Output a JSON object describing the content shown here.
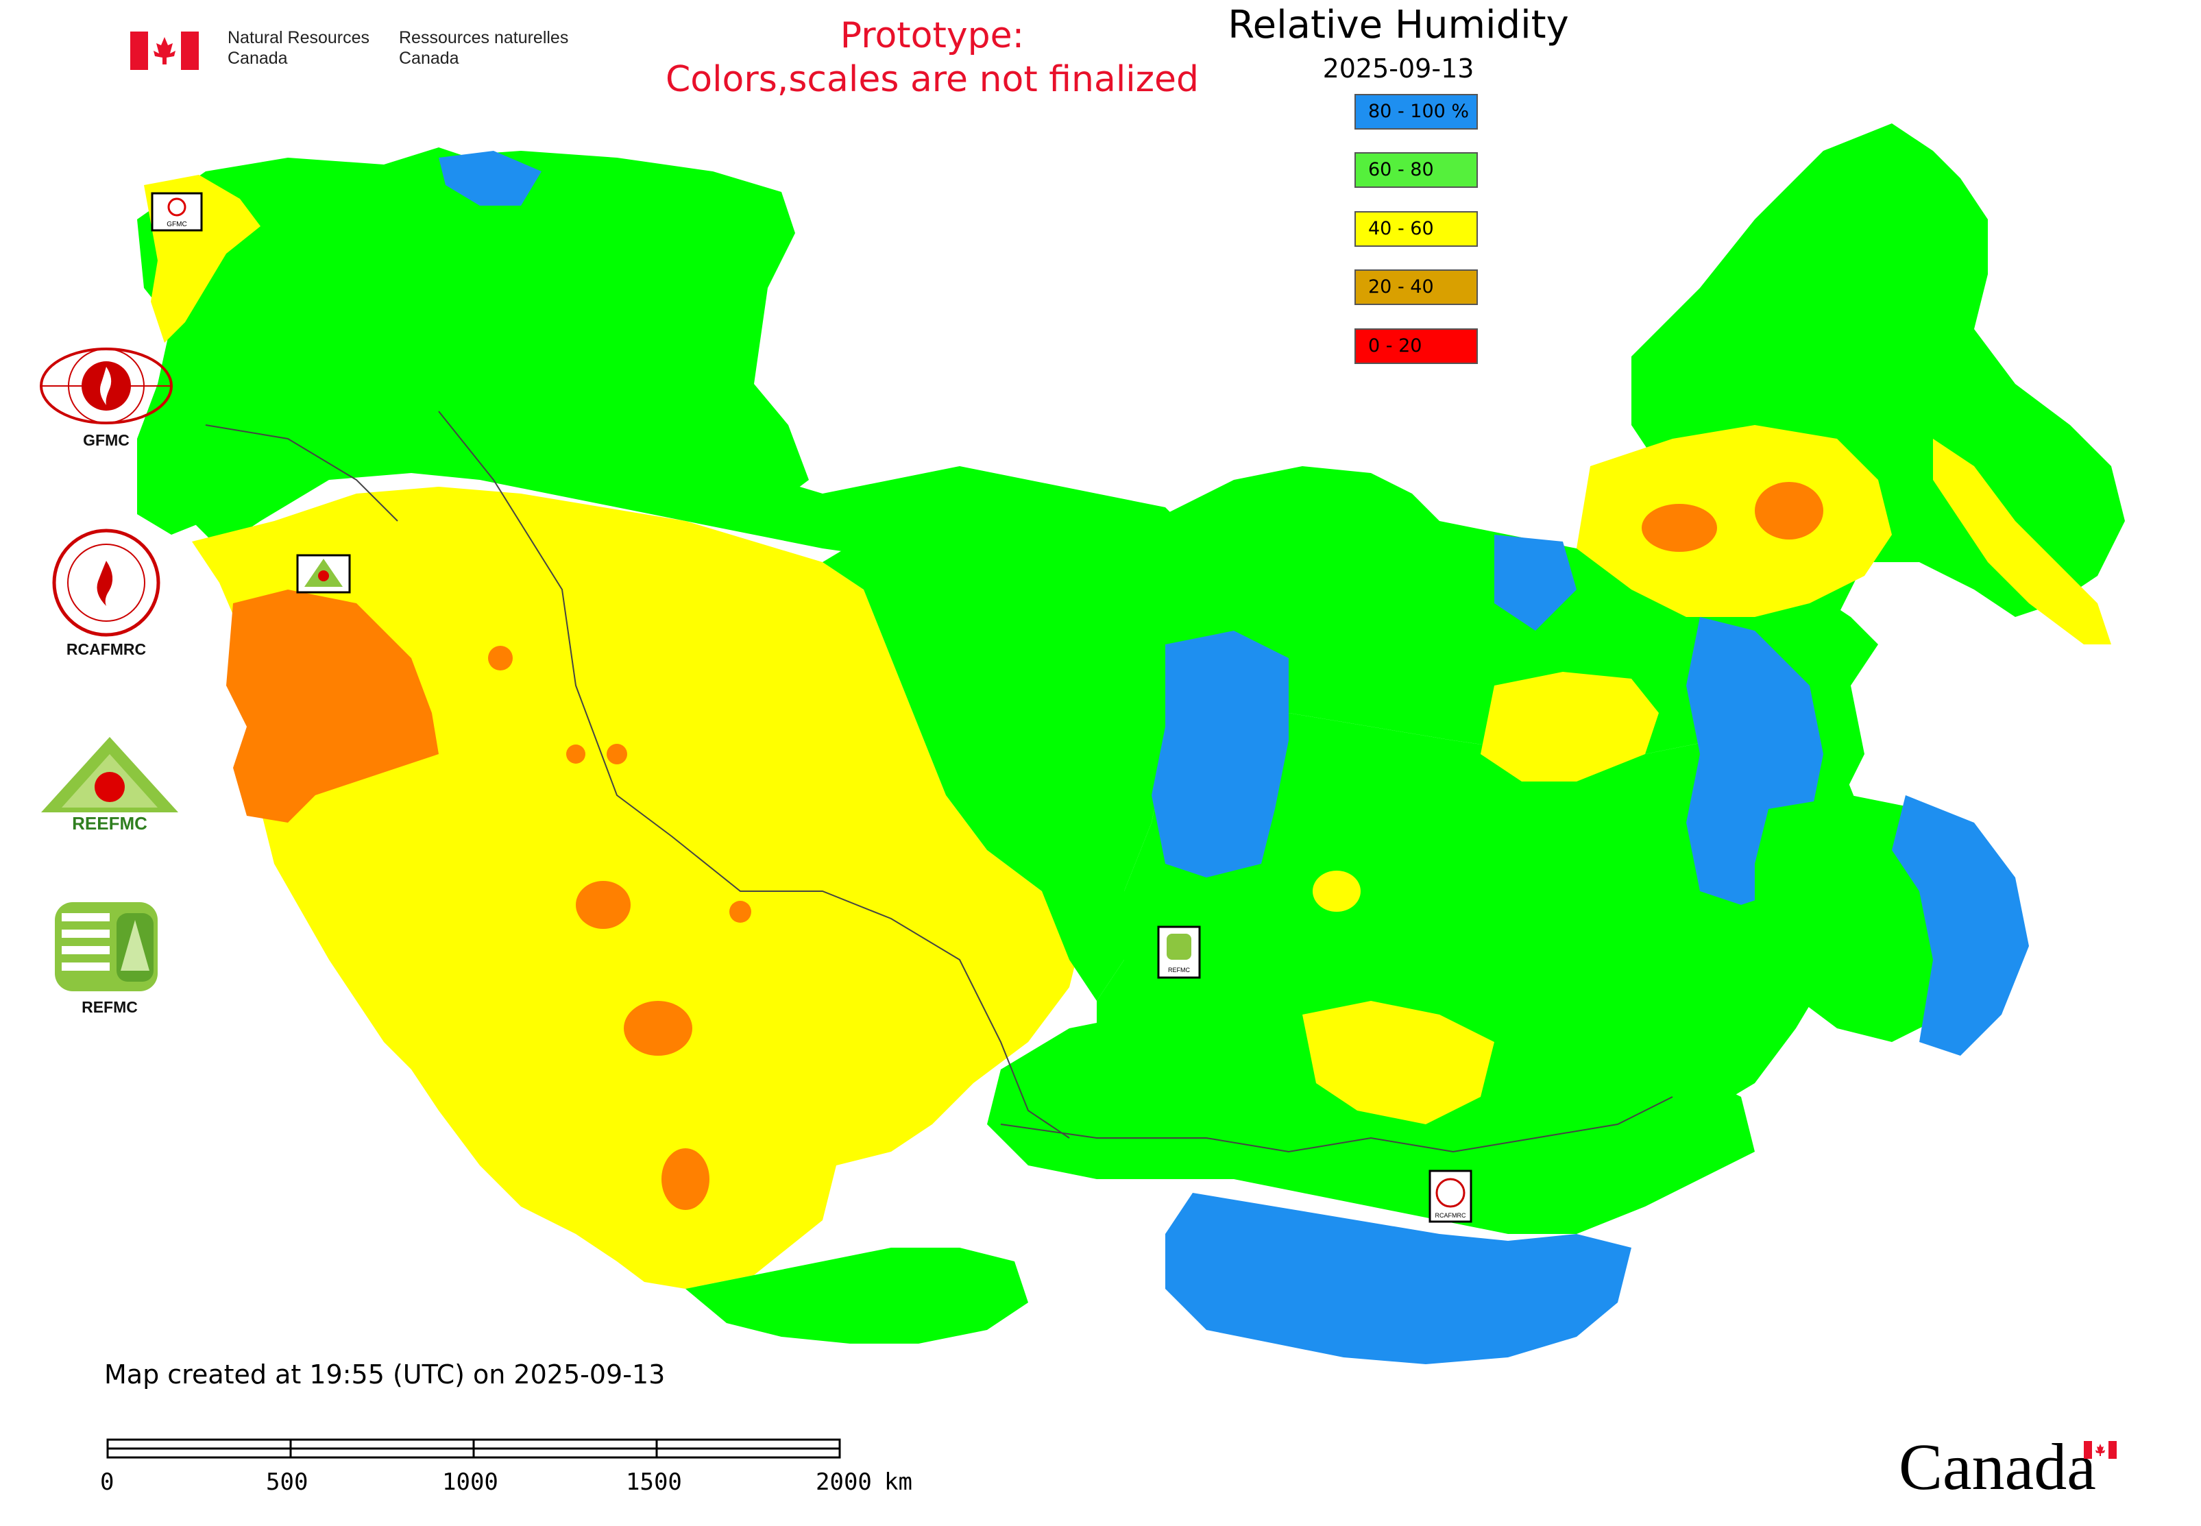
{
  "header": {
    "org_en_line1": "Natural Resources",
    "org_en_line2": "Canada",
    "org_fr_line1": "Ressources naturelles",
    "org_fr_line2": "Canada"
  },
  "notice": {
    "line1": "Prototype:",
    "line2": "Colors,scales are not finalized"
  },
  "map_title": "Relative Humidity",
  "map_date": "2025-09-13",
  "legend": [
    {
      "label": "80 - 100 %",
      "color": "#1e8ff0"
    },
    {
      "label": "60 - 80",
      "color": "#55f03c"
    },
    {
      "label": "40 - 60",
      "color": "#ffff00"
    },
    {
      "label": "20 - 40",
      "color": "#d9a000"
    },
    {
      "label": "0 - 20",
      "color": "#ff0000"
    }
  ],
  "side_logos": [
    {
      "label": "GFMC"
    },
    {
      "label": "RCAFMRC"
    },
    {
      "label": "REEFMC"
    },
    {
      "label": "REFMC"
    }
  ],
  "map_markers": {
    "gfmc": "GFMC",
    "refmc": "REFMC",
    "rcafmrc": "RCAFMRC"
  },
  "created_text": "Map created at 19:55 (UTC) on 2025-09-13",
  "scale": {
    "ticks": [
      "0",
      "500",
      "1000",
      "1500",
      "2000"
    ],
    "unit": "km"
  },
  "wordmark": "Canada",
  "colors": {
    "blue": "#1e8ff0",
    "green": "#00ff00",
    "yellow": "#ffff00",
    "orange": "#ff8000",
    "red_text": "#e8102a"
  }
}
